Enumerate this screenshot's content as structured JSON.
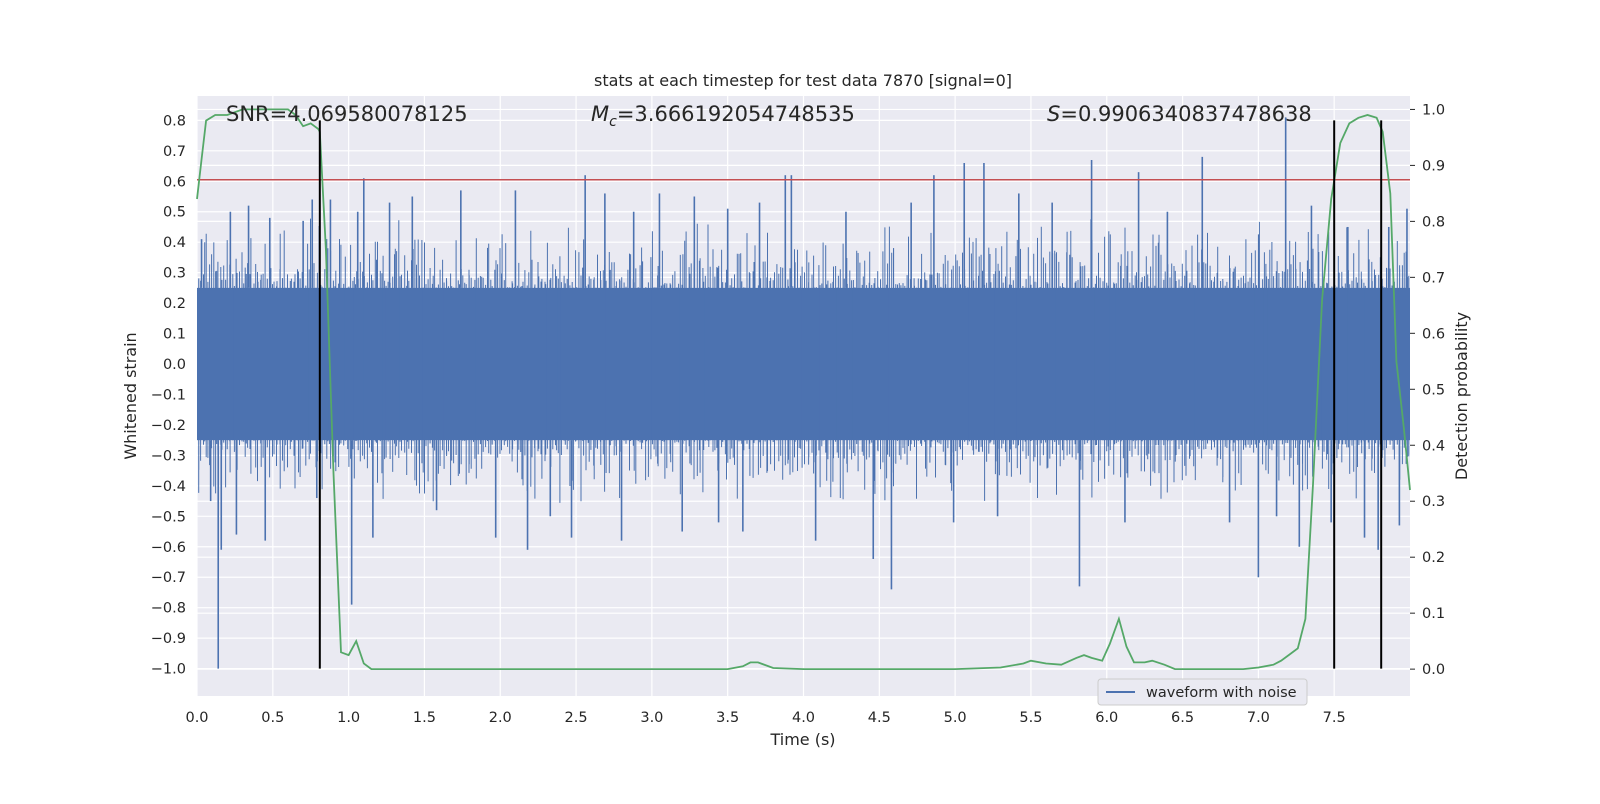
{
  "chart_data": {
    "type": "line",
    "title": "stats at each timestep for test data 7870 [signal=0]",
    "xlabel": "Time (s)",
    "ylabel": "Whitened strain",
    "y2label": "Detection probability",
    "xlim": [
      0.0,
      8.0
    ],
    "ylim": [
      -1.09,
      0.88
    ],
    "y2lim": [
      -0.048,
      1.024
    ],
    "x_ticks": [
      "0.0",
      "0.5",
      "1.0",
      "1.5",
      "2.0",
      "2.5",
      "3.0",
      "3.5",
      "4.0",
      "4.5",
      "5.0",
      "5.5",
      "6.0",
      "6.5",
      "7.0",
      "7.5"
    ],
    "y_ticks": [
      "0.8",
      "0.7",
      "0.6",
      "0.5",
      "0.4",
      "0.3",
      "0.2",
      "0.1",
      "0.0",
      "−0.1",
      "−0.2",
      "−0.3",
      "−0.4",
      "−0.5",
      "−0.6",
      "−0.7",
      "−0.8",
      "−0.9",
      "−1.0"
    ],
    "y2_ticks": [
      "1.0",
      "0.9",
      "0.8",
      "0.7",
      "0.6",
      "0.5",
      "0.4",
      "0.3",
      "0.2",
      "0.1",
      "0.0"
    ],
    "grid": true,
    "legend_position": "bottom-right",
    "annotations": {
      "snr": "SNR=4.069580078125",
      "mc_symbol": "M",
      "mc_sub": "c",
      "mc_value": "=3.666192054748535",
      "s_symbol": "S",
      "s_value": "=0.9906340837478638"
    },
    "series": [
      {
        "name": "waveform with noise",
        "color": "#4c72b0",
        "axis": "left",
        "band_limit": 0.25,
        "spikes": [
          {
            "x": 0.03,
            "y": 0.41
          },
          {
            "x": 0.09,
            "y": -0.45
          },
          {
            "x": 0.14,
            "y": -1.0
          },
          {
            "x": 0.16,
            "y": -0.61
          },
          {
            "x": 0.22,
            "y": 0.5
          },
          {
            "x": 0.26,
            "y": -0.56
          },
          {
            "x": 0.34,
            "y": 0.52
          },
          {
            "x": 0.45,
            "y": -0.58
          },
          {
            "x": 0.48,
            "y": 0.48
          },
          {
            "x": 0.7,
            "y": 0.47
          },
          {
            "x": 0.76,
            "y": 0.54
          },
          {
            "x": 0.79,
            "y": -0.44
          },
          {
            "x": 0.88,
            "y": 0.54
          },
          {
            "x": 1.02,
            "y": -0.79
          },
          {
            "x": 1.06,
            "y": 0.5
          },
          {
            "x": 1.1,
            "y": 0.61
          },
          {
            "x": 1.16,
            "y": -0.57
          },
          {
            "x": 1.27,
            "y": 0.53
          },
          {
            "x": 1.42,
            "y": 0.55
          },
          {
            "x": 1.58,
            "y": -0.48
          },
          {
            "x": 1.74,
            "y": 0.57
          },
          {
            "x": 1.97,
            "y": -0.57
          },
          {
            "x": 2.1,
            "y": 0.57
          },
          {
            "x": 2.18,
            "y": -0.61
          },
          {
            "x": 2.33,
            "y": -0.5
          },
          {
            "x": 2.47,
            "y": -0.57
          },
          {
            "x": 2.56,
            "y": 0.62
          },
          {
            "x": 2.69,
            "y": 0.56
          },
          {
            "x": 2.8,
            "y": -0.58
          },
          {
            "x": 2.88,
            "y": 0.5
          },
          {
            "x": 3.05,
            "y": 0.56
          },
          {
            "x": 3.2,
            "y": -0.55
          },
          {
            "x": 3.28,
            "y": 0.55
          },
          {
            "x": 3.44,
            "y": -0.52
          },
          {
            "x": 3.5,
            "y": 0.51
          },
          {
            "x": 3.6,
            "y": -0.55
          },
          {
            "x": 3.71,
            "y": 0.53
          },
          {
            "x": 3.88,
            "y": 0.62
          },
          {
            "x": 3.92,
            "y": 0.62
          },
          {
            "x": 4.08,
            "y": -0.58
          },
          {
            "x": 4.28,
            "y": 0.5
          },
          {
            "x": 4.46,
            "y": -0.64
          },
          {
            "x": 4.58,
            "y": -0.74
          },
          {
            "x": 4.71,
            "y": 0.53
          },
          {
            "x": 4.86,
            "y": 0.62
          },
          {
            "x": 4.99,
            "y": -0.52
          },
          {
            "x": 5.06,
            "y": 0.66
          },
          {
            "x": 5.19,
            "y": 0.66
          },
          {
            "x": 5.28,
            "y": -0.5
          },
          {
            "x": 5.42,
            "y": 0.56
          },
          {
            "x": 5.64,
            "y": 0.53
          },
          {
            "x": 5.82,
            "y": -0.73
          },
          {
            "x": 5.9,
            "y": 0.67
          },
          {
            "x": 6.12,
            "y": -0.52
          },
          {
            "x": 6.21,
            "y": 0.63
          },
          {
            "x": 6.4,
            "y": 0.5
          },
          {
            "x": 6.63,
            "y": 0.68
          },
          {
            "x": 6.81,
            "y": -0.52
          },
          {
            "x": 7.0,
            "y": -0.7
          },
          {
            "x": 7.12,
            "y": -0.5
          },
          {
            "x": 7.18,
            "y": 0.81
          },
          {
            "x": 7.27,
            "y": -0.6
          },
          {
            "x": 7.35,
            "y": 0.52
          },
          {
            "x": 7.48,
            "y": -0.52
          },
          {
            "x": 7.59,
            "y": 0.45
          },
          {
            "x": 7.7,
            "y": -0.57
          },
          {
            "x": 7.79,
            "y": -0.61
          },
          {
            "x": 7.86,
            "y": 0.45
          },
          {
            "x": 7.93,
            "y": -0.53
          },
          {
            "x": 7.98,
            "y": 0.51
          }
        ]
      },
      {
        "name": "",
        "color": "#55a868",
        "axis": "right",
        "points": [
          [
            0.0,
            0.84
          ],
          [
            0.03,
            0.91
          ],
          [
            0.06,
            0.98
          ],
          [
            0.12,
            0.99
          ],
          [
            0.2,
            0.99
          ],
          [
            0.3,
            1.0
          ],
          [
            0.4,
            1.0
          ],
          [
            0.5,
            1.0
          ],
          [
            0.6,
            1.0
          ],
          [
            0.65,
            0.99
          ],
          [
            0.7,
            0.97
          ],
          [
            0.75,
            0.975
          ],
          [
            0.8,
            0.965
          ],
          [
            0.81,
            0.96
          ],
          [
            0.85,
            0.75
          ],
          [
            0.9,
            0.35
          ],
          [
            0.95,
            0.03
          ],
          [
            1.0,
            0.025
          ],
          [
            1.05,
            0.05
          ],
          [
            1.1,
            0.01
          ],
          [
            1.15,
            0.0
          ],
          [
            1.3,
            0.0
          ],
          [
            1.5,
            0.0
          ],
          [
            1.7,
            0.0
          ],
          [
            2.0,
            0.0
          ],
          [
            2.5,
            0.0
          ],
          [
            3.0,
            0.0
          ],
          [
            3.5,
            0.0
          ],
          [
            3.6,
            0.005
          ],
          [
            3.65,
            0.012
          ],
          [
            3.7,
            0.012
          ],
          [
            3.8,
            0.002
          ],
          [
            4.0,
            0.0
          ],
          [
            4.5,
            0.0
          ],
          [
            5.0,
            0.0
          ],
          [
            5.3,
            0.003
          ],
          [
            5.45,
            0.01
          ],
          [
            5.5,
            0.015
          ],
          [
            5.6,
            0.01
          ],
          [
            5.7,
            0.008
          ],
          [
            5.8,
            0.02
          ],
          [
            5.85,
            0.025
          ],
          [
            5.9,
            0.02
          ],
          [
            5.97,
            0.015
          ],
          [
            6.02,
            0.045
          ],
          [
            6.08,
            0.09
          ],
          [
            6.13,
            0.04
          ],
          [
            6.18,
            0.012
          ],
          [
            6.25,
            0.012
          ],
          [
            6.3,
            0.015
          ],
          [
            6.38,
            0.008
          ],
          [
            6.45,
            0.0
          ],
          [
            6.7,
            0.0
          ],
          [
            6.9,
            0.0
          ],
          [
            7.0,
            0.003
          ],
          [
            7.1,
            0.008
          ],
          [
            7.15,
            0.015
          ],
          [
            7.2,
            0.025
          ],
          [
            7.26,
            0.037
          ],
          [
            7.31,
            0.09
          ],
          [
            7.36,
            0.33
          ],
          [
            7.42,
            0.66
          ],
          [
            7.48,
            0.84
          ],
          [
            7.54,
            0.94
          ],
          [
            7.6,
            0.975
          ],
          [
            7.66,
            0.985
          ],
          [
            7.72,
            0.99
          ],
          [
            7.78,
            0.985
          ],
          [
            7.82,
            0.96
          ],
          [
            7.87,
            0.85
          ],
          [
            7.91,
            0.55
          ],
          [
            7.96,
            0.43
          ],
          [
            8.0,
            0.32
          ]
        ]
      }
    ],
    "threshold": {
      "y": 0.605,
      "color": "#c44e52"
    },
    "vertical_markers": [
      {
        "x": 0.81,
        "y_from": -1.0,
        "y_to": 0.8
      },
      {
        "x": 7.5,
        "y_from": -1.0,
        "y_to": 0.8
      },
      {
        "x": 7.81,
        "y_from": -1.0,
        "y_to": 0.8
      }
    ]
  }
}
